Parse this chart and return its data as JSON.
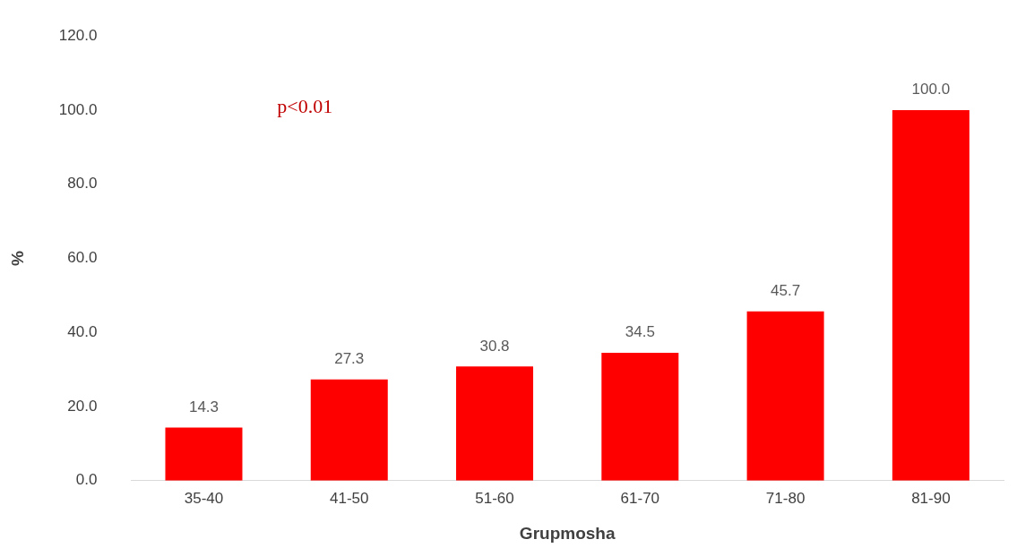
{
  "chart_data": {
    "type": "bar",
    "xlabel": "Grupmosha",
    "ylabel": "%",
    "categories": [
      "35-40",
      "41-50",
      "51-60",
      "61-70",
      "71-80",
      "81-90"
    ],
    "values": [
      14.3,
      27.3,
      30.8,
      34.5,
      45.7,
      100.0
    ],
    "color": "#ff0000",
    "ylim": [
      0,
      120
    ],
    "yticks": [
      {
        "value": 0,
        "label": "0.0"
      },
      {
        "value": 20,
        "label": "20.0"
      },
      {
        "value": 40,
        "label": "40.0"
      },
      {
        "value": 60,
        "label": "60.0"
      },
      {
        "value": 80,
        "label": "80.0"
      },
      {
        "value": 100,
        "label": "100.0"
      },
      {
        "value": 120,
        "label": "120.0"
      }
    ],
    "value_labels": [
      "14.3",
      "27.3",
      "30.8",
      "34.5",
      "45.7",
      "100.0"
    ],
    "annotations": [
      "p<0.01"
    ],
    "grid": false,
    "legend": false
  }
}
